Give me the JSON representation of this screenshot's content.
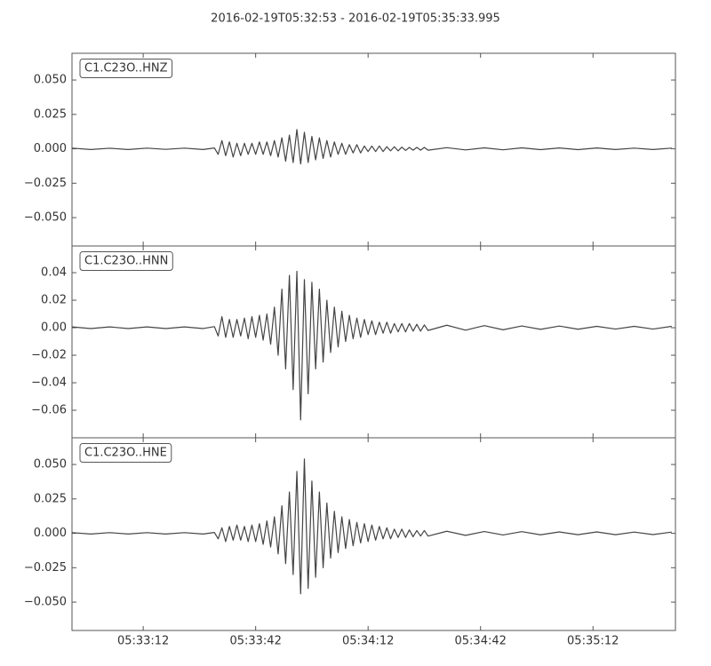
{
  "title": "2016-02-19T05:32:53  -  2016-02-19T05:35:33.995",
  "chart_data": [
    {
      "type": "line",
      "x": [
        0,
        5,
        10,
        15,
        20,
        25,
        30,
        35,
        38,
        39,
        40,
        41,
        42,
        43,
        44,
        45,
        46,
        47,
        48,
        49,
        50,
        51,
        52,
        53,
        54,
        55,
        56,
        57,
        58,
        59,
        60,
        61,
        62,
        63,
        64,
        65,
        66,
        67,
        68,
        69,
        70,
        71,
        72,
        73,
        74,
        75,
        76,
        77,
        78,
        79,
        80,
        81,
        82,
        83,
        84,
        85,
        86,
        87,
        88,
        89,
        90,
        91,
        92,
        93,
        94,
        95,
        100,
        105,
        110,
        115,
        120,
        125,
        130,
        135,
        140,
        145,
        150,
        155,
        160
      ],
      "xlim": [
        0,
        160.995
      ],
      "ylim": [
        -0.0706,
        0.0694
      ],
      "yticks": [
        {
          "value": 0.05,
          "label": "0.050"
        },
        {
          "value": 0.025,
          "label": "0.025"
        },
        {
          "value": 0,
          "label": "0.000"
        },
        {
          "value": -0.025,
          "label": "−0.025"
        },
        {
          "value": -0.05,
          "label": "−0.050"
        }
      ],
      "series": [
        {
          "name": "C1.C23O..HNZ",
          "color": "#444444",
          "values": [
            0.0005,
            -0.0005,
            0.0004,
            -0.0005,
            0.0005,
            -0.0004,
            0.0005,
            -0.0005,
            0.0006,
            -0.004,
            0.006,
            -0.005,
            0.005,
            -0.006,
            0.004,
            -0.005,
            0.004,
            -0.004,
            0.004,
            -0.004,
            0.005,
            -0.004,
            0.005,
            -0.005,
            0.006,
            -0.006,
            0.008,
            -0.009,
            0.01,
            -0.01,
            0.014,
            -0.011,
            0.012,
            -0.01,
            0.009,
            -0.008,
            0.008,
            -0.007,
            0.006,
            -0.006,
            0.005,
            -0.004,
            0.004,
            -0.004,
            0.003,
            -0.003,
            0.003,
            -0.003,
            0.002,
            -0.002,
            0.002,
            -0.002,
            0.002,
            -0.002,
            0.0015,
            -0.0015,
            0.0015,
            -0.0015,
            0.0012,
            -0.0012,
            0.001,
            -0.001,
            0.001,
            -0.001,
            0.001,
            -0.001,
            0.0008,
            -0.0008,
            0.0007,
            -0.0007,
            0.0007,
            -0.0006,
            0.0006,
            -0.0006,
            0.0006,
            -0.0005,
            0.0005,
            -0.0005,
            0.0005
          ]
        }
      ]
    },
    {
      "type": "line",
      "x": [
        0,
        5,
        10,
        15,
        20,
        25,
        30,
        35,
        38,
        39,
        40,
        41,
        42,
        43,
        44,
        45,
        46,
        47,
        48,
        49,
        50,
        51,
        52,
        53,
        54,
        55,
        56,
        57,
        58,
        59,
        60,
        61,
        62,
        63,
        64,
        65,
        66,
        67,
        68,
        69,
        70,
        71,
        72,
        73,
        74,
        75,
        76,
        77,
        78,
        79,
        80,
        81,
        82,
        83,
        84,
        85,
        86,
        87,
        88,
        89,
        90,
        91,
        92,
        93,
        94,
        95,
        100,
        105,
        110,
        115,
        120,
        125,
        130,
        135,
        140,
        145,
        150,
        155,
        160
      ],
      "xlim": [
        0,
        160.995
      ],
      "ylim": [
        -0.08,
        0.0594
      ],
      "yticks": [
        {
          "value": 0.04,
          "label": "0.04"
        },
        {
          "value": 0.02,
          "label": "0.02"
        },
        {
          "value": 0,
          "label": "0.00"
        },
        {
          "value": -0.02,
          "label": "−0.02"
        },
        {
          "value": -0.04,
          "label": "−0.04"
        },
        {
          "value": -0.06,
          "label": "−0.06"
        }
      ],
      "series": [
        {
          "name": "C1.C23O..HNN",
          "color": "#444444",
          "values": [
            0.0006,
            -0.0006,
            0.0006,
            -0.0006,
            0.0006,
            -0.0006,
            0.0006,
            -0.0006,
            0.0008,
            -0.006,
            0.008,
            -0.007,
            0.006,
            -0.007,
            0.006,
            -0.006,
            0.007,
            -0.008,
            0.008,
            -0.007,
            0.009,
            -0.009,
            0.01,
            -0.012,
            0.015,
            -0.02,
            0.028,
            -0.03,
            0.038,
            -0.045,
            0.041,
            -0.067,
            0.035,
            -0.048,
            0.033,
            -0.03,
            0.028,
            -0.025,
            0.02,
            -0.018,
            0.015,
            -0.014,
            0.012,
            -0.01,
            0.009,
            -0.008,
            0.007,
            -0.007,
            0.006,
            -0.005,
            0.005,
            -0.005,
            0.004,
            -0.004,
            0.004,
            -0.004,
            0.003,
            -0.003,
            0.003,
            -0.003,
            0.003,
            -0.0025,
            0.0025,
            -0.0025,
            0.002,
            -0.002,
            0.0018,
            -0.0018,
            0.0015,
            -0.0015,
            0.0013,
            -0.0012,
            0.0012,
            -0.0011,
            0.001,
            -0.001,
            0.001,
            -0.001,
            0.001
          ]
        }
      ]
    },
    {
      "type": "line",
      "x": [
        0,
        5,
        10,
        15,
        20,
        25,
        30,
        35,
        38,
        39,
        40,
        41,
        42,
        43,
        44,
        45,
        46,
        47,
        48,
        49,
        50,
        51,
        52,
        53,
        54,
        55,
        56,
        57,
        58,
        59,
        60,
        61,
        62,
        63,
        64,
        65,
        66,
        67,
        68,
        69,
        70,
        71,
        72,
        73,
        74,
        75,
        76,
        77,
        78,
        79,
        80,
        81,
        82,
        83,
        84,
        85,
        86,
        87,
        88,
        89,
        90,
        91,
        92,
        93,
        94,
        95,
        100,
        105,
        110,
        115,
        120,
        125,
        130,
        135,
        140,
        145,
        150,
        155,
        160
      ],
      "xlim": [
        0,
        160.995
      ],
      "xticks": [
        {
          "value": 19,
          "label": "05:33:12"
        },
        {
          "value": 49,
          "label": "05:33:42"
        },
        {
          "value": 79,
          "label": "05:34:12"
        },
        {
          "value": 109,
          "label": "05:34:42"
        },
        {
          "value": 139,
          "label": "05:35:12"
        }
      ],
      "ylim": [
        -0.0706,
        0.0694
      ],
      "yticks": [
        {
          "value": 0.05,
          "label": "0.050"
        },
        {
          "value": 0.025,
          "label": "0.025"
        },
        {
          "value": 0,
          "label": "0.000"
        },
        {
          "value": -0.025,
          "label": "−0.025"
        },
        {
          "value": -0.05,
          "label": "−0.050"
        }
      ],
      "series": [
        {
          "name": "C1.C23O..HNE",
          "color": "#444444",
          "values": [
            0.0005,
            -0.0005,
            0.0005,
            -0.0005,
            0.0005,
            -0.0005,
            0.0005,
            -0.0005,
            0.0006,
            -0.004,
            0.004,
            -0.006,
            0.005,
            -0.005,
            0.006,
            -0.005,
            0.005,
            -0.006,
            0.006,
            -0.006,
            0.007,
            -0.008,
            0.009,
            -0.01,
            0.012,
            -0.015,
            0.02,
            -0.022,
            0.03,
            -0.03,
            0.045,
            -0.044,
            0.054,
            -0.04,
            0.038,
            -0.032,
            0.03,
            -0.025,
            0.022,
            -0.018,
            0.016,
            -0.014,
            0.012,
            -0.011,
            0.01,
            -0.009,
            0.008,
            -0.007,
            0.007,
            -0.006,
            0.006,
            -0.005,
            0.005,
            -0.004,
            0.004,
            -0.004,
            0.003,
            -0.003,
            0.003,
            -0.003,
            0.0025,
            -0.0025,
            0.002,
            -0.002,
            0.002,
            -0.002,
            0.0015,
            -0.0015,
            0.0013,
            -0.0012,
            0.0012,
            -0.0011,
            0.001,
            -0.001,
            0.001,
            -0.001,
            0.0009,
            -0.0009,
            0.0009
          ]
        }
      ]
    }
  ]
}
